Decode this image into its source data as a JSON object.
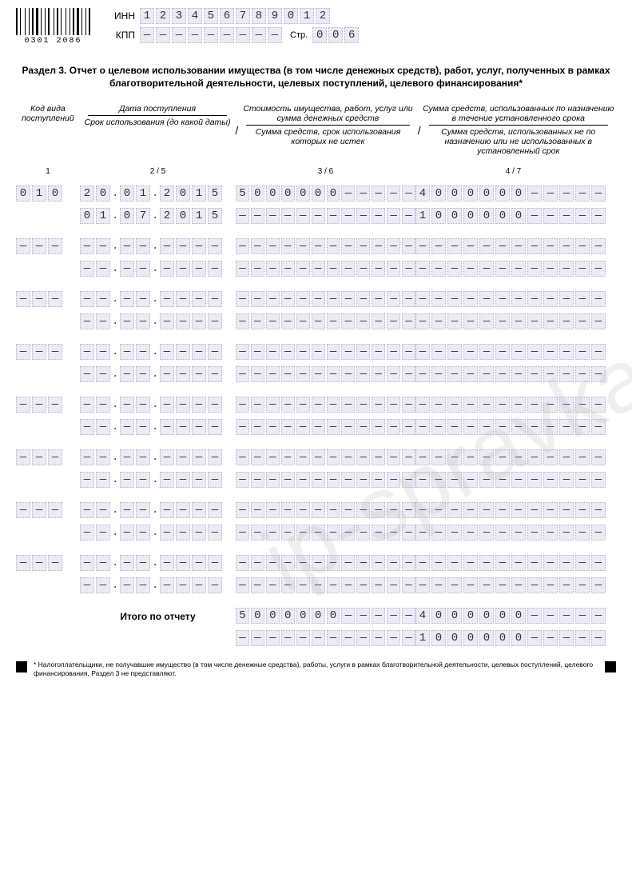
{
  "barcode_number": "0301 2086",
  "header": {
    "inn_label": "ИНН",
    "inn": [
      "1",
      "2",
      "3",
      "4",
      "5",
      "6",
      "7",
      "8",
      "9",
      "0",
      "1",
      "2"
    ],
    "kpp_label": "КПП",
    "kpp": [
      "—",
      "—",
      "—",
      "—",
      "—",
      "—",
      "—",
      "—",
      "—"
    ],
    "page_label": "Стр.",
    "page": [
      "0",
      "0",
      "6"
    ]
  },
  "section_title": "Раздел 3. Отчет о целевом использовании имущества (в том числе денежных средств), работ, услуг, полученных в рамках благотворительной деятельности, целевых поступлений, целевого финансирования*",
  "columns": {
    "c1": "Код вида поступлений",
    "c2a": "Дата поступления",
    "c2b": "Срок использования (до какой даты)",
    "c3a": "Стоимость имущества, работ, услуг или сумма денежных средств",
    "c3b": "Сумма средств, срок использования которых не истек",
    "c4a": "Сумма средств, использованных по назначению в течение установленного срока",
    "c4b": "Сумма средств, использованных не по назначению или не использованных в установленный срок",
    "n1": "1",
    "n2": "2 / 5",
    "n3": "3 / 6",
    "n4": "4 / 7"
  },
  "rows": [
    {
      "code": [
        "0",
        "1",
        "0"
      ],
      "date1": {
        "d": [
          "2",
          "0"
        ],
        "m": [
          "0",
          "1"
        ],
        "y": [
          "2",
          "0",
          "1",
          "5"
        ]
      },
      "date2": {
        "d": [
          "0",
          "1"
        ],
        "m": [
          "0",
          "7"
        ],
        "y": [
          "2",
          "0",
          "1",
          "5"
        ]
      },
      "amt1": [
        "5",
        "0",
        "0",
        "0",
        "0",
        "0",
        "0",
        "—",
        "—",
        "—",
        "—",
        "—"
      ],
      "amt2": [
        "—",
        "—",
        "—",
        "—",
        "—",
        "—",
        "—",
        "—",
        "—",
        "—",
        "—",
        "—"
      ],
      "amt3": [
        "4",
        "0",
        "0",
        "0",
        "0",
        "0",
        "0",
        "—",
        "—",
        "—",
        "—",
        "—"
      ],
      "amt4": [
        "1",
        "0",
        "0",
        "0",
        "0",
        "0",
        "0",
        "—",
        "—",
        "—",
        "—",
        "—"
      ]
    }
  ],
  "empty": {
    "code": [
      "—",
      "—",
      "—"
    ],
    "dd": [
      "—",
      "—"
    ],
    "yy": [
      "—",
      "—",
      "—",
      "—"
    ],
    "amt": [
      "—",
      "—",
      "—",
      "—",
      "—",
      "—",
      "—",
      "—",
      "—",
      "—",
      "—",
      "—"
    ]
  },
  "totals_label": "Итого по отчету",
  "totals": {
    "t1": [
      "5",
      "0",
      "0",
      "0",
      "0",
      "0",
      "0",
      "—",
      "—",
      "—",
      "—",
      "—"
    ],
    "t2": [
      "—",
      "—",
      "—",
      "—",
      "—",
      "—",
      "—",
      "—",
      "—",
      "—",
      "—",
      "—"
    ],
    "t3": [
      "4",
      "0",
      "0",
      "0",
      "0",
      "0",
      "0",
      "—",
      "—",
      "—",
      "—",
      "—"
    ],
    "t4": [
      "1",
      "0",
      "0",
      "0",
      "0",
      "0",
      "0",
      "—",
      "—",
      "—",
      "—",
      "—"
    ]
  },
  "footnote": "* Налогоплательщики, не получавшие имущество (в том числе денежные средства), работы, услуги в рамках благотворительной деятельности, целевых поступлений, целевого финансирования, Раздел 3 не представляют.",
  "watermark": "ip-spravka.ru",
  "colors": {
    "cell_bg": "#eceaf4",
    "cell_border": "#b8b4d0"
  }
}
